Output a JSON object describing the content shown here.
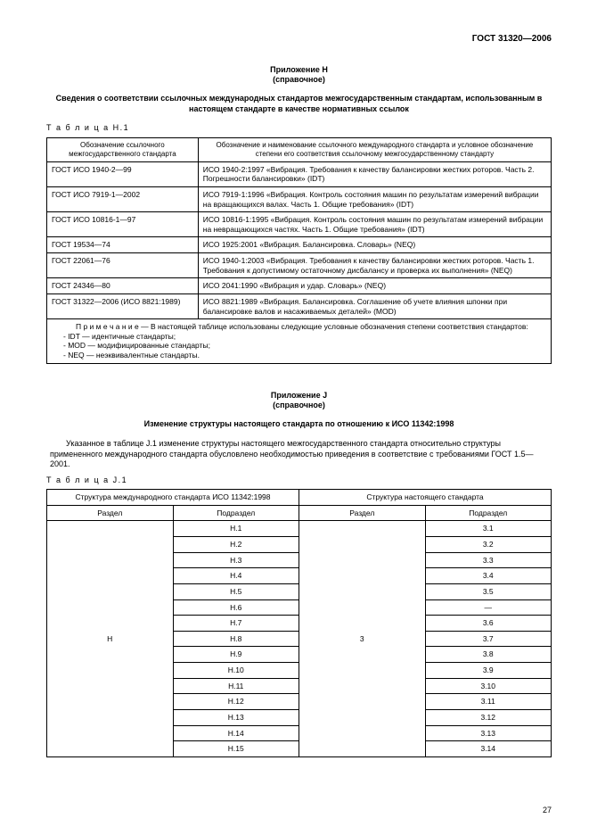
{
  "header": "ГОСТ 31320—2006",
  "appendixH": {
    "line1": "Приложение Н",
    "line2": "(справочное)",
    "title": "Сведения о соответствии ссылочных международных стандартов межгосударственным стандартам, использованным в настоящем стандарте в качестве нормативных ссылок",
    "tableLabel": "Т а б л и ц а  Н.1",
    "col1": "Обозначение ссылочного межгосударственного стандарта",
    "col2": "Обозначение и наименование ссылочного международного стандарта и условное обозначение степени его соответствия ссылочному межгосударственному стандарту",
    "rows": [
      {
        "c1": "ГОСТ ИСО 1940-2—99",
        "c2": "ИСО 1940-2:1997 «Вибрация. Требования к качеству балансировки жестких роторов. Часть 2. Погрешности балансировки» (IDT)"
      },
      {
        "c1": "ГОСТ ИСО 7919-1—2002",
        "c2": "ИСО 7919-1:1996 «Вибрация. Контроль состояния машин по результатам измерений вибрации на вращающихся валах. Часть 1. Общие требования» (IDT)"
      },
      {
        "c1": "ГОСТ ИСО 10816-1—97",
        "c2": "ИСО 10816-1:1995 «Вибрация. Контроль состояния машин по результатам измерений вибрации на невращающихся частях. Часть 1. Общие требования» (IDT)"
      },
      {
        "c1": "ГОСТ 19534—74",
        "c2": "ИСО 1925:2001 «Вибрация. Балансировка. Словарь» (NEQ)"
      },
      {
        "c1": "ГОСТ 22061—76",
        "c2": "ИСО 1940-1:2003 «Вибрация. Требования к качеству балансировки жестких роторов. Часть 1. Требования к допустимому остаточному дисбалансу и проверка их выполнения» (NEQ)"
      },
      {
        "c1": "ГОСТ 24346—80",
        "c2": "ИСО 2041:1990 «Вибрация и удар. Словарь» (NEQ)"
      },
      {
        "c1": "ГОСТ 31322—2006 (ИСО 8821:1989)",
        "c2": "ИСО 8821:1989 «Вибрация. Балансировка. Соглашение об учете влияния шпонки при балансировке валов и насаживаемых деталей» (MOD)"
      }
    ],
    "noteLead": "П р и м е ч а н и е — В настоящей таблице использованы следующие условные обозначения степени соответствия стандартов:",
    "noteLines": [
      "-  IDT — идентичные стандарты;",
      "-  MOD — модифицированные стандарты;",
      "-  NEQ — неэквивалентные стандарты."
    ]
  },
  "appendixJ": {
    "line1": "Приложение J",
    "line2": "(справочное)",
    "title": "Изменение структуры настоящего стандарта по отношению к ИСО 11342:1998",
    "para": "Указанное в таблице J.1 изменение структуры настоящего межгосударственного стандарта относительно структуры примененного международного стандарта обусловлено необходимостью приведения в соответствие с требованиями ГОСТ 1.5—2001.",
    "tableLabel": "Т а б л и ц а  J.1",
    "header1": "Структура международного стандарта ИСО 11342:1998",
    "header2": "Структура настоящего стандарта",
    "subhead_section": "Раздел",
    "subhead_subsection": "Подраздел",
    "leftSection": "H",
    "rightSection": "3",
    "rows": [
      {
        "l": "H.1",
        "r": "3.1"
      },
      {
        "l": "H.2",
        "r": "3.2"
      },
      {
        "l": "H.3",
        "r": "3.3"
      },
      {
        "l": "H.4",
        "r": "3.4"
      },
      {
        "l": "H.5",
        "r": "3.5"
      },
      {
        "l": "H.6",
        "r": "—"
      },
      {
        "l": "H.7",
        "r": "3.6"
      },
      {
        "l": "H.8",
        "r": "3.7"
      },
      {
        "l": "H.9",
        "r": "3.8"
      },
      {
        "l": "H.10",
        "r": "3.9"
      },
      {
        "l": "H.11",
        "r": "3.10"
      },
      {
        "l": "H.12",
        "r": "3.11"
      },
      {
        "l": "H.13",
        "r": "3.12"
      },
      {
        "l": "H.14",
        "r": "3.13"
      },
      {
        "l": "H.15",
        "r": "3.14"
      }
    ]
  },
  "pageNumber": "27"
}
